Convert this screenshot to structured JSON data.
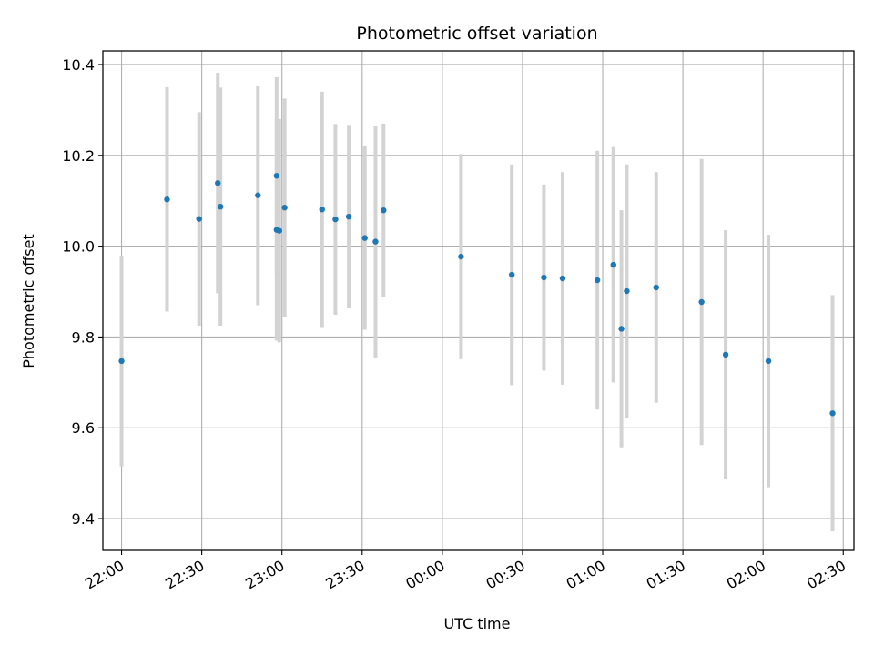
{
  "chart_data": {
    "type": "scatter",
    "title": "Photometric offset variation",
    "xlabel": "UTC time",
    "ylabel": "Photometric offset",
    "grid": true,
    "ylim": [
      9.33,
      10.43
    ],
    "xlim": [
      "21:53",
      "02:34"
    ],
    "x_ticks": [
      "22:00",
      "22:30",
      "23:00",
      "23:30",
      "00:00",
      "00:30",
      "01:00",
      "01:30",
      "02:00",
      "02:30"
    ],
    "y_ticks": [
      "9.4",
      "9.6",
      "9.8",
      "10.0",
      "10.2",
      "10.4"
    ],
    "colors": {
      "point": "#1f77b4",
      "errorbar": "#d3d3d3",
      "grid": "#b0b0b0"
    },
    "series": [
      {
        "points": [
          {
            "x": "22:00",
            "y": 9.747,
            "err": 0.232
          },
          {
            "x": "22:17",
            "y": 10.103,
            "err": 0.247
          },
          {
            "x": "22:29",
            "y": 10.06,
            "err": 0.235
          },
          {
            "x": "22:36",
            "y": 10.139,
            "err": 0.243
          },
          {
            "x": "22:37",
            "y": 10.087,
            "err": 0.262
          },
          {
            "x": "22:51",
            "y": 10.112,
            "err": 0.242
          },
          {
            "x": "22:58",
            "y": 10.155,
            "err": 0.217
          },
          {
            "x": "22:58",
            "y": 10.036,
            "err": 0.244
          },
          {
            "x": "22:59",
            "y": 10.034,
            "err": 0.246
          },
          {
            "x": "23:01",
            "y": 10.085,
            "err": 0.24
          },
          {
            "x": "23:15",
            "y": 10.081,
            "err": 0.259
          },
          {
            "x": "23:20",
            "y": 10.059,
            "err": 0.21
          },
          {
            "x": "23:25",
            "y": 10.065,
            "err": 0.202
          },
          {
            "x": "23:31",
            "y": 10.018,
            "err": 0.202
          },
          {
            "x": "23:35",
            "y": 10.01,
            "err": 0.255
          },
          {
            "x": "23:38",
            "y": 10.079,
            "err": 0.191
          },
          {
            "x": "00:07",
            "y": 9.977,
            "err": 0.226
          },
          {
            "x": "00:26",
            "y": 9.937,
            "err": 0.243
          },
          {
            "x": "00:38",
            "y": 9.931,
            "err": 0.205
          },
          {
            "x": "00:45",
            "y": 9.929,
            "err": 0.234
          },
          {
            "x": "00:58",
            "y": 9.925,
            "err": 0.285
          },
          {
            "x": "01:04",
            "y": 9.959,
            "err": 0.259
          },
          {
            "x": "01:07",
            "y": 9.818,
            "err": 0.261
          },
          {
            "x": "01:09",
            "y": 9.901,
            "err": 0.279
          },
          {
            "x": "01:20",
            "y": 9.909,
            "err": 0.254
          },
          {
            "x": "01:37",
            "y": 9.877,
            "err": 0.315
          },
          {
            "x": "01:46",
            "y": 9.761,
            "err": 0.274
          },
          {
            "x": "02:02",
            "y": 9.747,
            "err": 0.278
          },
          {
            "x": "02:26",
            "y": 9.632,
            "err": 0.26
          }
        ]
      }
    ]
  }
}
